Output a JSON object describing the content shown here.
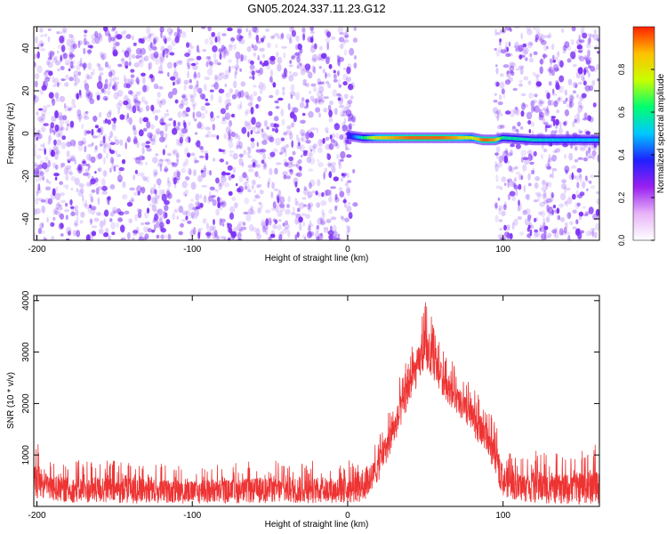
{
  "title": "GN05.2024.337.11.23.G12",
  "colors": {
    "noise": "#7b2cf5",
    "snr_line": "#ee3333",
    "axis": "#000000",
    "colorbar": [
      "#ffffff",
      "#e8b4f8",
      "#9a20f0",
      "#2020ff",
      "#00c8ff",
      "#00ff70",
      "#c8ff00",
      "#ffc000",
      "#ff2000"
    ]
  },
  "chart_data": [
    {
      "type": "heatmap",
      "name": "spectrogram",
      "xlabel": "Height of straight line (km)",
      "ylabel": "Frequency (Hz)",
      "xlim": [
        -202,
        162
      ],
      "ylim": [
        -50,
        50
      ],
      "xticks": [
        -200,
        -100,
        0,
        100
      ],
      "xtick_labels": [
        "-200",
        "-100",
        "0",
        "100"
      ],
      "yticks": [
        -40,
        -20,
        0,
        20,
        40
      ],
      "ytick_labels": [
        "-40",
        "-20",
        "0",
        "20",
        "40"
      ],
      "colorbar": {
        "label": "Normalized spectral amplitude",
        "range": [
          0,
          1
        ],
        "ticks": [
          0.0,
          0.2,
          0.4,
          0.6,
          0.8
        ],
        "tick_labels": [
          "0.0",
          "0.2",
          "0.4",
          "0.6",
          "0.8"
        ]
      },
      "regions": [
        {
          "x_from": -202,
          "x_to": 5,
          "content": "noise",
          "max_amplitude": 0.3
        },
        {
          "x_from": 5,
          "x_to": 95,
          "content": "signal track",
          "max_amplitude": 0.95
        },
        {
          "x_from": 95,
          "x_to": 162,
          "content": "noise and signal track",
          "max_amplitude": 0.3
        }
      ],
      "signal_track": {
        "x": [
          0,
          10,
          20,
          30,
          40,
          50,
          60,
          70,
          80,
          87,
          90,
          95,
          100,
          120,
          140,
          162
        ],
        "frequency": [
          -1,
          -2,
          -2,
          -2,
          -2,
          -2,
          -2,
          -2,
          -2,
          -3,
          -3,
          -3,
          -2,
          -3,
          -3,
          -3
        ],
        "amplitude": [
          0.3,
          0.6,
          0.85,
          0.9,
          0.95,
          0.95,
          0.95,
          0.9,
          0.75,
          0.95,
          0.95,
          0.9,
          0.6,
          0.55,
          0.5,
          0.5
        ]
      }
    },
    {
      "type": "line",
      "name": "snr",
      "xlabel": "Height of straight line (km)",
      "ylabel": "SNR (10 * v/v)",
      "xlim": [
        -202,
        162
      ],
      "ylim": [
        0,
        4100
      ],
      "xticks": [
        -200,
        -100,
        0,
        100
      ],
      "xtick_labels": [
        "-200",
        "-100",
        "0",
        "100"
      ],
      "yticks": [
        1000,
        2000,
        3000,
        4000
      ],
      "ytick_labels": [
        "1000",
        "2000",
        "3000",
        "4000"
      ],
      "envelope": {
        "x": [
          -202,
          -190,
          -150,
          -100,
          -50,
          0,
          10,
          20,
          30,
          40,
          50,
          60,
          70,
          80,
          90,
          100,
          110,
          120,
          140,
          162
        ],
        "lower": [
          100,
          80,
          60,
          50,
          60,
          60,
          80,
          500,
          1200,
          2000,
          2700,
          2200,
          1800,
          1400,
          1000,
          200,
          100,
          60,
          40,
          40
        ],
        "upper": [
          1300,
          900,
          900,
          800,
          900,
          900,
          900,
          1400,
          2200,
          3100,
          4000,
          3200,
          2700,
          2400,
          2000,
          1200,
          1000,
          1100,
          1000,
          1250
        ]
      }
    }
  ]
}
